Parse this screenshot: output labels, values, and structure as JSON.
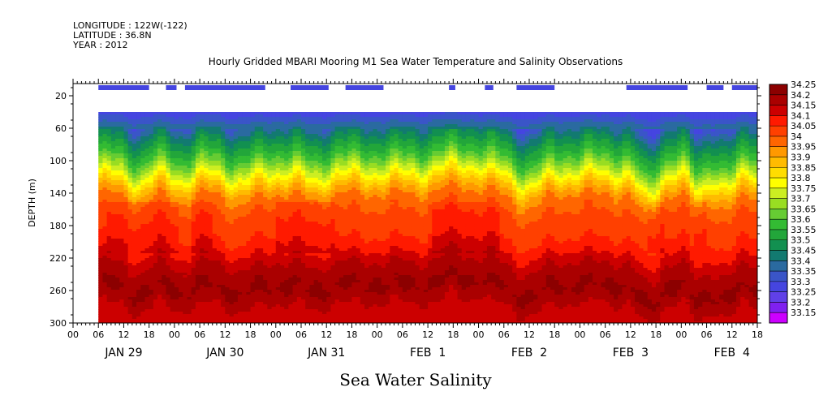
{
  "header": {
    "longitude": "LONGITUDE : 122W(-122)",
    "latitude": "LATITUDE : 36.8N",
    "year": "YEAR : 2012"
  },
  "chart_data": {
    "type": "heatmap",
    "title": "Hourly Gridded MBARI Mooring M1 Sea Water Temperature and Salinity Observations",
    "xlabel": "Sea Water Salinity",
    "ylabel": "DEPTH (m)",
    "y_ticks": [
      20,
      60,
      100,
      140,
      180,
      220,
      260,
      300
    ],
    "ylim": [
      300,
      5
    ],
    "xlim_hours": [
      0,
      162
    ],
    "x_hour_ticks": [
      "00",
      "06",
      "12",
      "18",
      "00",
      "06",
      "12",
      "18",
      "00",
      "06",
      "12",
      "18",
      "00",
      "06",
      "12",
      "18",
      "00",
      "06",
      "12",
      "18",
      "00",
      "06",
      "12",
      "18",
      "00",
      "06",
      "12",
      "18"
    ],
    "day_labels": [
      "JAN 29",
      "JAN 30",
      "JAN 31",
      "FEB  1",
      "FEB  2",
      "FEB  3",
      "FEB  4"
    ],
    "data_start_hour": 6,
    "data_top_depth_m": 40,
    "colorbar_levels": [
      "34.25",
      "34.2",
      "34.15",
      "34.1",
      "34.05",
      "34",
      "33.95",
      "33.9",
      "33.85",
      "33.8",
      "33.75",
      "33.7",
      "33.65",
      "33.6",
      "33.55",
      "33.5",
      "33.45",
      "33.4",
      "33.35",
      "33.3",
      "33.25",
      "33.2",
      "33.15"
    ],
    "colorbar_colors": [
      "#8c0000",
      "#aa0000",
      "#cc0000",
      "#ff1a00",
      "#ff4000",
      "#ff6600",
      "#ff9900",
      "#ffbb00",
      "#ffdd00",
      "#ffff00",
      "#ccee22",
      "#99dd22",
      "#66cc33",
      "#33bb33",
      "#22a63a",
      "#129050",
      "#127a70",
      "#2a6aa0",
      "#3a55c8",
      "#4545e0",
      "#6040e8",
      "#8020f0",
      "#cc00ff"
    ],
    "depth_profile": {
      "depths": [
        40,
        55,
        70,
        85,
        95,
        105,
        115,
        125,
        135,
        145,
        160,
        190,
        210,
        225,
        240,
        255,
        275,
        300
      ],
      "salinity": [
        33.32,
        33.42,
        33.52,
        33.6,
        33.66,
        33.74,
        33.82,
        33.9,
        33.97,
        34.02,
        34.06,
        34.1,
        34.15,
        34.2,
        34.24,
        34.26,
        34.2,
        34.17
      ]
    },
    "shallow_bars_hours": [
      [
        6,
        18
      ],
      [
        22,
        24.5
      ],
      [
        26.5,
        45.5
      ],
      [
        51.5,
        60.5
      ],
      [
        64.5,
        73.5
      ],
      [
        89,
        90.5
      ],
      [
        97.5,
        99.5
      ],
      [
        105,
        114
      ],
      [
        131,
        145.5
      ],
      [
        150,
        154
      ],
      [
        156,
        162
      ]
    ]
  }
}
